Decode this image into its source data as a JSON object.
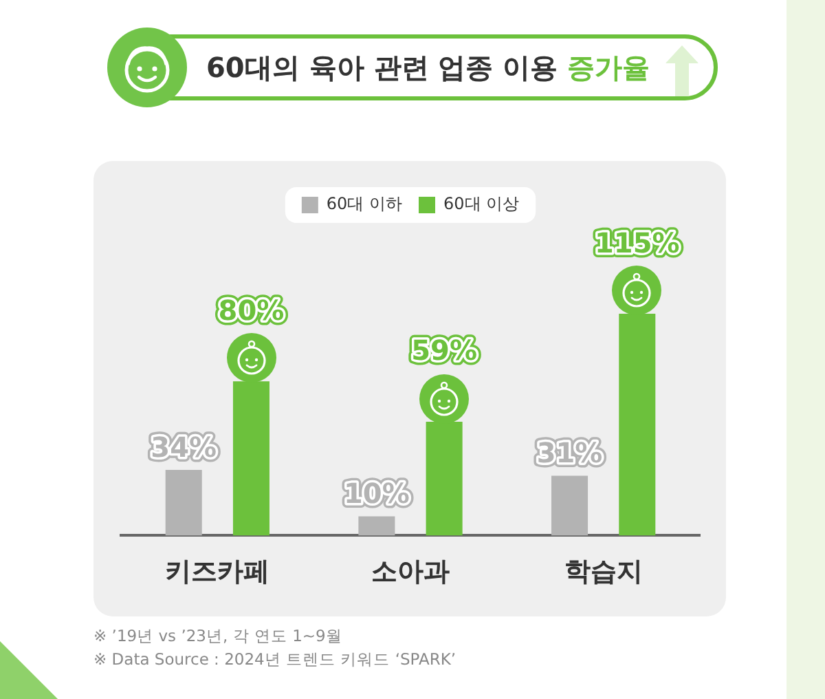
{
  "chart_data": {
    "type": "bar",
    "title": "60대의 육아 관련 업종 이용 증가율",
    "categories": [
      "키즈카페",
      "소아과",
      "학습지"
    ],
    "series": [
      {
        "name": "60대 이하",
        "color": "#b3b3b3",
        "values": [
          34,
          10,
          31
        ],
        "value_labels": [
          "34%",
          "10%",
          "31%"
        ]
      },
      {
        "name": "60대 이상",
        "color": "#6cc13c",
        "values": [
          80,
          59,
          115
        ],
        "value_labels": [
          "80%",
          "59%",
          "115%"
        ]
      }
    ],
    "legend": "top",
    "grid": false,
    "tick_labels": "x",
    "annotations": [
      "※ ’19년 vs ’23년, 각 연도 1~9월",
      "※ Data Source : 2024년 트렌드 키워드 ‘SPARK’"
    ]
  }
}
